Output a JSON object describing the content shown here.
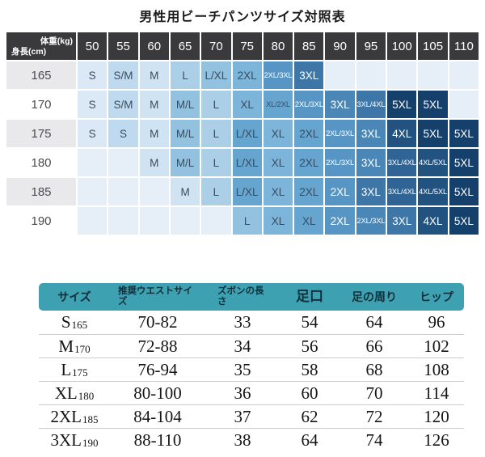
{
  "title": "男性用ビーチパンツサイズ対照表",
  "colors": {
    "header_dark": "#3A3A3C",
    "teal": "#3EA1B2",
    "shade_scale": [
      "#E6EFF7",
      "#DAE9F5",
      "#BFDAEE",
      "#CFE3F2",
      "#ABCFE7",
      "#93C2E0",
      "#7DB4DA",
      "#66A5D0",
      "#5795C4",
      "#4A87B7",
      "#3D76A7",
      "#2F6495",
      "#22527F",
      "#16406C"
    ],
    "cell_text_dark": "#3A4C5E",
    "cell_text_light": "#FFFFFF"
  },
  "size_matrix": {
    "corner": {
      "top": "体重(kg)",
      "bottom": "身長(cm)"
    },
    "weight_headers": [
      "50",
      "55",
      "60",
      "65",
      "70",
      "75",
      "80",
      "85",
      "90",
      "95",
      "100",
      "105",
      "110"
    ],
    "rows": [
      {
        "height": "165",
        "cells": [
          {
            "t": "S",
            "s": 1
          },
          {
            "t": "S/M",
            "s": 2
          },
          {
            "t": "M",
            "s": 3
          },
          {
            "t": "L",
            "s": 4
          },
          {
            "t": "L/XL",
            "s": 5
          },
          {
            "t": "2XL",
            "s": 6
          },
          {
            "t": "2XL/3XL",
            "s": 8
          },
          {
            "t": "3XL",
            "s": 10
          },
          {
            "t": "",
            "s": 0
          },
          {
            "t": "",
            "s": 0
          },
          {
            "t": "",
            "s": 0
          },
          {
            "t": "",
            "s": 0
          },
          {
            "t": "",
            "s": 0
          }
        ]
      },
      {
        "height": "170",
        "cells": [
          {
            "t": "S",
            "s": 1
          },
          {
            "t": "S/M",
            "s": 2
          },
          {
            "t": "M",
            "s": 3
          },
          {
            "t": "M/L",
            "s": 5
          },
          {
            "t": "L",
            "s": 4
          },
          {
            "t": "XL",
            "s": 6
          },
          {
            "t": "XL/2XL",
            "s": 7
          },
          {
            "t": "2XL/3XL",
            "s": 8
          },
          {
            "t": "3XL",
            "s": 9
          },
          {
            "t": "3XL/4XL",
            "s": 10
          },
          {
            "t": "5XL",
            "s": 13
          },
          {
            "t": "5XL",
            "s": 13
          },
          {
            "t": "",
            "s": 0
          }
        ]
      },
      {
        "height": "175",
        "cells": [
          {
            "t": "S",
            "s": 1
          },
          {
            "t": "S",
            "s": 2
          },
          {
            "t": "M",
            "s": 3
          },
          {
            "t": "M/L",
            "s": 5
          },
          {
            "t": "L",
            "s": 4
          },
          {
            "t": "L/XL",
            "s": 7
          },
          {
            "t": "XL",
            "s": 6
          },
          {
            "t": "2XL",
            "s": 7
          },
          {
            "t": "2XL/3XL",
            "s": 8
          },
          {
            "t": "3XL",
            "s": 9
          },
          {
            "t": "4XL",
            "s": 12
          },
          {
            "t": "5XL",
            "s": 13
          },
          {
            "t": "5XL",
            "s": 13
          }
        ]
      },
      {
        "height": "180",
        "cells": [
          {
            "t": "",
            "s": 0
          },
          {
            "t": "",
            "s": 0
          },
          {
            "t": "M",
            "s": 3
          },
          {
            "t": "M/L",
            "s": 5
          },
          {
            "t": "L",
            "s": 4
          },
          {
            "t": "L/XL",
            "s": 7
          },
          {
            "t": "XL",
            "s": 6
          },
          {
            "t": "2XL",
            "s": 7
          },
          {
            "t": "2XL/3XL",
            "s": 8
          },
          {
            "t": "3XL",
            "s": 9
          },
          {
            "t": "3XL/4XL",
            "s": 11
          },
          {
            "t": "4XL/5XL",
            "s": 12
          },
          {
            "t": "5XL",
            "s": 13
          }
        ]
      },
      {
        "height": "185",
        "cells": [
          {
            "t": "",
            "s": 0
          },
          {
            "t": "",
            "s": 0
          },
          {
            "t": "",
            "s": 0
          },
          {
            "t": "M",
            "s": 3
          },
          {
            "t": "L",
            "s": 4
          },
          {
            "t": "L/XL",
            "s": 7
          },
          {
            "t": "XL",
            "s": 6
          },
          {
            "t": "2XL",
            "s": 7
          },
          {
            "t": "2XL",
            "s": 8
          },
          {
            "t": "3XL",
            "s": 10
          },
          {
            "t": "3XL/4XL",
            "s": 11
          },
          {
            "t": "4XL/5XL",
            "s": 12
          },
          {
            "t": "5XL",
            "s": 13
          }
        ]
      },
      {
        "height": "190",
        "cells": [
          {
            "t": "",
            "s": 0
          },
          {
            "t": "",
            "s": 0
          },
          {
            "t": "",
            "s": 0
          },
          {
            "t": "",
            "s": 0
          },
          {
            "t": "",
            "s": 0
          },
          {
            "t": "L",
            "s": 5
          },
          {
            "t": "XL",
            "s": 6
          },
          {
            "t": "XL",
            "s": 7
          },
          {
            "t": "2XL",
            "s": 8
          },
          {
            "t": "2XL/3XL",
            "s": 9
          },
          {
            "t": "3XL",
            "s": 10
          },
          {
            "t": "4XL",
            "s": 12
          },
          {
            "t": "5XL",
            "s": 13
          }
        ]
      }
    ]
  },
  "spec_table": {
    "headers": {
      "size": "サイズ",
      "waist": "推奨ウエストサイズ",
      "length": "ズボンの長さ",
      "leg_opening": "足口",
      "leg_around": "足の周り",
      "hip": "ヒップ"
    },
    "rows": [
      {
        "size": "S",
        "height": "165",
        "waist": "70-82",
        "length": "33",
        "leg_opening": "54",
        "leg_around": "64",
        "hip": "96"
      },
      {
        "size": "M",
        "height": "170",
        "waist": "72-88",
        "length": "34",
        "leg_opening": "56",
        "leg_around": "66",
        "hip": "102"
      },
      {
        "size": "L",
        "height": "175",
        "waist": "76-94",
        "length": "35",
        "leg_opening": "58",
        "leg_around": "68",
        "hip": "108"
      },
      {
        "size": "XL",
        "height": "180",
        "waist": "80-100",
        "length": "36",
        "leg_opening": "60",
        "leg_around": "70",
        "hip": "114"
      },
      {
        "size": "2XL",
        "height": "185",
        "waist": "84-104",
        "length": "37",
        "leg_opening": "62",
        "leg_around": "72",
        "hip": "120"
      },
      {
        "size": "3XL",
        "height": "190",
        "waist": "88-110",
        "length": "38",
        "leg_opening": "64",
        "leg_around": "74",
        "hip": "126"
      }
    ]
  }
}
